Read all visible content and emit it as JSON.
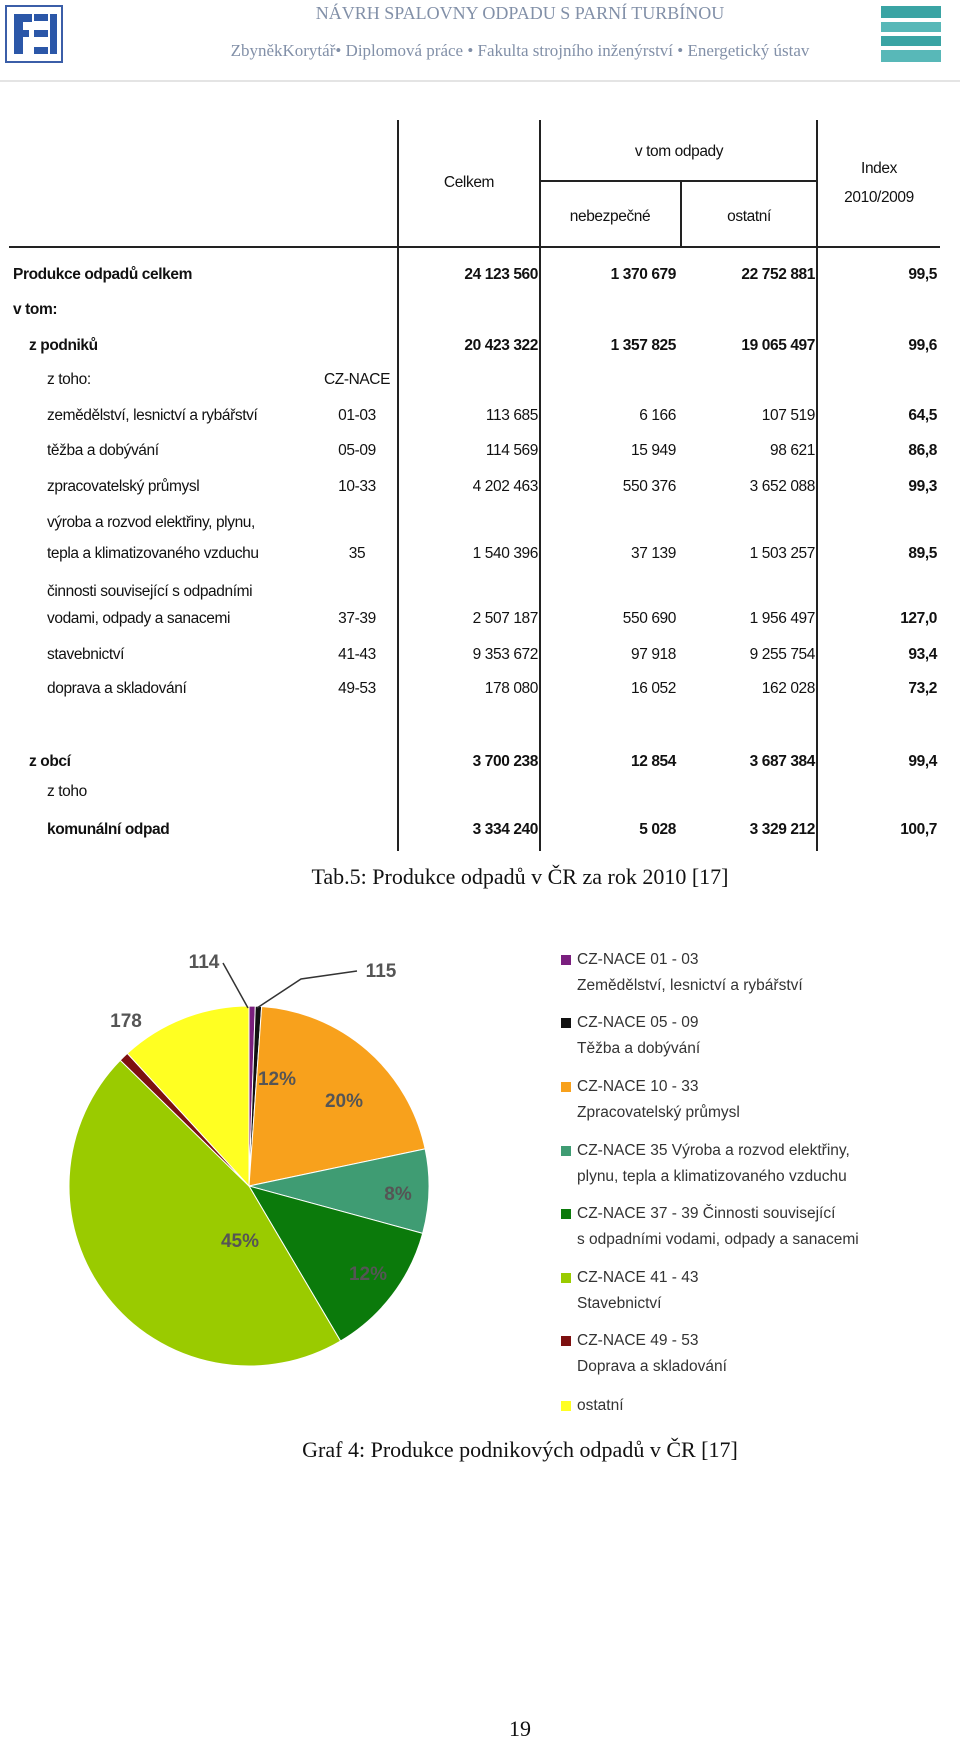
{
  "header": {
    "title": "NÁVRH SPALOVNY ODPADU S PARNÍ TURBÍNOU",
    "subtitle": "ZbyněkKorytář• Diplomová práce • Fakulta strojního inženýrství • Energetický ústav"
  },
  "table": {
    "columns": {
      "total": "Celkem",
      "group": "v tom odpady",
      "hazardous": "nebezpečné",
      "other": "ostatní",
      "index": [
        "Index",
        "2010/2009"
      ]
    },
    "rows": [
      {
        "label": "Produkce odpadů celkem",
        "total": "24 123 560",
        "hazardous": "1 370 679",
        "other": "22 752 881",
        "index": "99,5"
      },
      {
        "label": "v tom:"
      },
      {
        "label": "z podniků",
        "total": "20 423 322",
        "hazardous": "1 357 825",
        "other": "19 065 497",
        "index": "99,6"
      },
      {
        "label": "z toho:",
        "code": "CZ-NACE"
      },
      {
        "label": "zemědělství, lesnictví a rybářství",
        "code": "01-03",
        "total": "113 685",
        "hazardous": "6 166",
        "other": "107 519",
        "index": "64,5"
      },
      {
        "label": "těžba a dobývání",
        "code": "05-09",
        "total": "114 569",
        "hazardous": "15 949",
        "other": "98 621",
        "index": "86,8"
      },
      {
        "label": "zpracovatelský průmysl",
        "code": "10-33",
        "total": "4 202 463",
        "hazardous": "550 376",
        "other": "3 652 088",
        "index": "99,3"
      },
      {
        "label": [
          "výroba a rozvod elektřiny, plynu,",
          "tepla a klimatizovaného vzduchu"
        ],
        "code": "35",
        "total": "1 540 396",
        "hazardous": "37 139",
        "other": "1 503 257",
        "index": "89,5"
      },
      {
        "label": [
          "činnosti související s odpadními",
          "vodami, odpady a sanacemi"
        ],
        "code": "37-39",
        "total": "2 507 187",
        "hazardous": "550 690",
        "other": "1 956 497",
        "index": "127,0"
      },
      {
        "label": "stavebnictví",
        "code": "41-43",
        "total": "9 353 672",
        "hazardous": "97 918",
        "other": "9 255 754",
        "index": "93,4"
      },
      {
        "label": "doprava a skladování",
        "code": "49-53",
        "total": "178 080",
        "hazardous": "16 052",
        "other": "162 028",
        "index": "73,2"
      },
      {
        "label": "z obcí",
        "total": "3 700 238",
        "hazardous": "12 854",
        "other": "3 687 384",
        "index": "99,4"
      },
      {
        "label": "z toho"
      },
      {
        "label": "komunální odpad",
        "total": "3 334 240",
        "hazardous": "5 028",
        "other": "3 329 212",
        "index": "100,7"
      }
    ]
  },
  "table_caption": "Tab.5: Produkce odpadů v ČR za rok 2010 [17]",
  "chart_data": {
    "type": "pie",
    "categories": [
      [
        "CZ-NACE 01 - 03",
        "Zemědělství, lesnictví a rybářství"
      ],
      [
        "CZ-NACE 05 - 09",
        "Těžba a dobývání"
      ],
      [
        "CZ-NACE 10 - 33",
        "Zpracovatelský průmysl"
      ],
      [
        "CZ-NACE 35 Výroba a rozvod elektřiny,",
        "plynu, tepla a klimatizovaného vzduchu"
      ],
      [
        "CZ-NACE 37 - 39 Činnosti související",
        "s odpadními vodami, odpady a sanacemi"
      ],
      [
        "CZ-NACE 41 - 43",
        "Stavebnictví"
      ],
      [
        "CZ-NACE 49 - 53",
        "Doprava a skladování"
      ],
      [
        "ostatní"
      ]
    ],
    "values": [
      114,
      115,
      4202,
      1540,
      2507,
      9354,
      178,
      2413
    ],
    "value_labels": [
      "114",
      "115",
      null,
      null,
      null,
      null,
      "178",
      null
    ],
    "percent_labels": [
      null,
      null,
      "20%",
      "8%",
      "12%",
      "45%",
      null,
      "12%"
    ],
    "colors": [
      "#7a1f7e",
      "#111111",
      "#f8a11c",
      "#3f9c73",
      "#0b7a0b",
      "#9acb00",
      "#7d1010",
      "#ffff22"
    ]
  },
  "chart_caption": "Graf 4: Produkce podnikových odpadů v ČR [17]",
  "page_number": "19"
}
